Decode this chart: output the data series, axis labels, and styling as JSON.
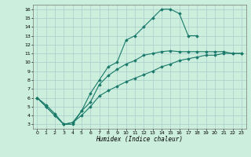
{
  "title": "",
  "xlabel": "Humidex (Indice chaleur)",
  "bg_color": "#cceedd",
  "grid_color": "#aacccc",
  "line_color": "#1a7a6a",
  "xlim": [
    -0.5,
    23.5
  ],
  "ylim": [
    2.5,
    16.5
  ],
  "xticks": [
    0,
    1,
    2,
    3,
    4,
    5,
    6,
    7,
    8,
    9,
    10,
    11,
    12,
    13,
    14,
    15,
    16,
    17,
    18,
    19,
    20,
    21,
    22,
    23
  ],
  "yticks": [
    3,
    4,
    5,
    6,
    7,
    8,
    9,
    10,
    11,
    12,
    13,
    14,
    15,
    16
  ],
  "line1_x": [
    0,
    1,
    2,
    3,
    4,
    5,
    6,
    7,
    8,
    9,
    10,
    11,
    12,
    13,
    14,
    15,
    16,
    17,
    18
  ],
  "line1_y": [
    6,
    5,
    4,
    3,
    3,
    4.5,
    6.5,
    8,
    9.5,
    10,
    12.5,
    13,
    14,
    15,
    16,
    16,
    15.5,
    13,
    13
  ],
  "line2_x": [
    0,
    1,
    2,
    3,
    4,
    5,
    6,
    7,
    8,
    9,
    10,
    11,
    12,
    13,
    14,
    15,
    16,
    17,
    18,
    19,
    20,
    21,
    22,
    23
  ],
  "line2_y": [
    6,
    5.2,
    4.2,
    3,
    3.2,
    4.5,
    5.5,
    7.5,
    8.5,
    9.2,
    9.8,
    10.2,
    10.8,
    11,
    11.2,
    11.3,
    11.2,
    11.2,
    11.2,
    11.2,
    11.2,
    11.2,
    11,
    11
  ],
  "line3_x": [
    0,
    1,
    2,
    3,
    4,
    5,
    6,
    7,
    8,
    9,
    10,
    11,
    12,
    13,
    14,
    15,
    16,
    17,
    18,
    19,
    20,
    21,
    22,
    23
  ],
  "line3_y": [
    6,
    5,
    4,
    3,
    3.2,
    4.0,
    5.0,
    6.2,
    6.8,
    7.3,
    7.8,
    8.2,
    8.6,
    9.0,
    9.5,
    9.8,
    10.2,
    10.4,
    10.6,
    10.8,
    10.8,
    11,
    11,
    11
  ]
}
